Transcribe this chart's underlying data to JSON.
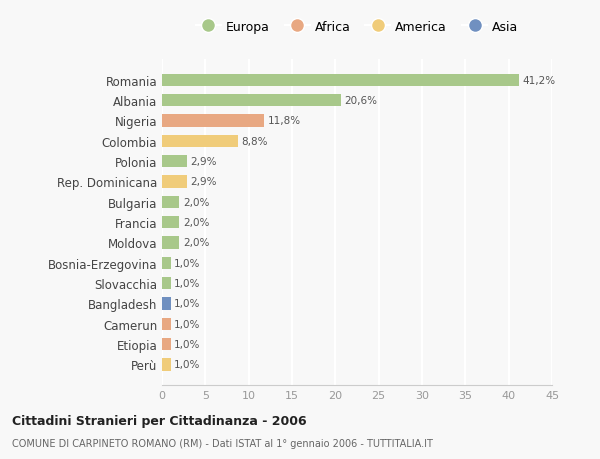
{
  "countries": [
    "Romania",
    "Albania",
    "Nigeria",
    "Colombia",
    "Polonia",
    "Rep. Dominicana",
    "Bulgaria",
    "Francia",
    "Moldova",
    "Bosnia-Erzegovina",
    "Slovacchia",
    "Bangladesh",
    "Camerun",
    "Etiopia",
    "Perù"
  ],
  "values": [
    41.2,
    20.6,
    11.8,
    8.8,
    2.9,
    2.9,
    2.0,
    2.0,
    2.0,
    1.0,
    1.0,
    1.0,
    1.0,
    1.0,
    1.0
  ],
  "labels": [
    "41,2%",
    "20,6%",
    "11,8%",
    "8,8%",
    "2,9%",
    "2,9%",
    "2,0%",
    "2,0%",
    "2,0%",
    "1,0%",
    "1,0%",
    "1,0%",
    "1,0%",
    "1,0%",
    "1,0%"
  ],
  "continents": [
    "Europa",
    "Europa",
    "Africa",
    "America",
    "Europa",
    "America",
    "Europa",
    "Europa",
    "Europa",
    "Europa",
    "Europa",
    "Asia",
    "Africa",
    "Africa",
    "America"
  ],
  "continent_colors": {
    "Europa": "#a8c88a",
    "Africa": "#e8a882",
    "America": "#f0cc7a",
    "Asia": "#7090c0"
  },
  "legend_order": [
    "Europa",
    "Africa",
    "America",
    "Asia"
  ],
  "title": "Cittadini Stranieri per Cittadinanza - 2006",
  "subtitle": "COMUNE DI CARPINETO ROMANO (RM) - Dati ISTAT al 1° gennaio 2006 - TUTTITALIA.IT",
  "xlim": [
    0,
    45
  ],
  "xticks": [
    0,
    5,
    10,
    15,
    20,
    25,
    30,
    35,
    40,
    45
  ],
  "background_color": "#f8f8f8",
  "grid_color": "#ffffff"
}
